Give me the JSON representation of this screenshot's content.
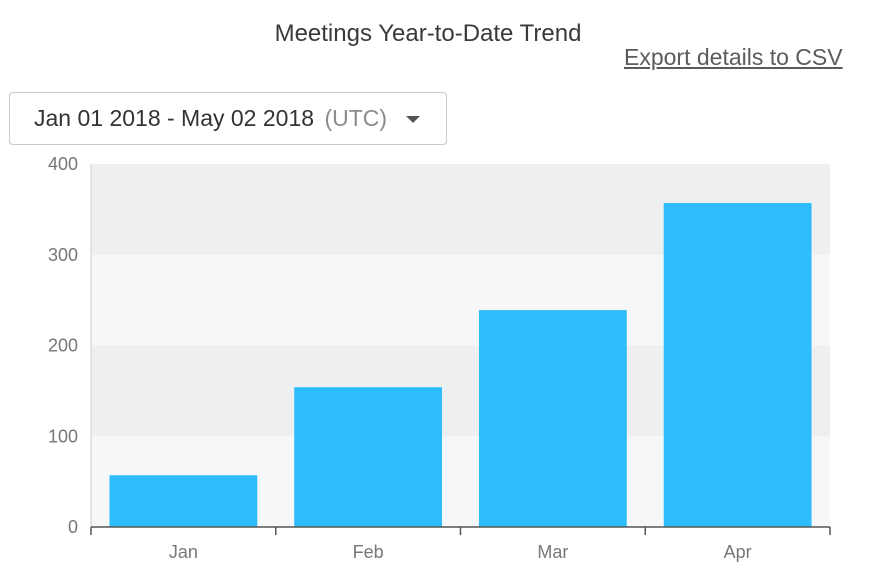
{
  "title": "Meetings Year-to-Date Trend",
  "export_link": "Export details to CSV",
  "date_filter": {
    "range": "Jan 01 2018 - May 02 2018",
    "timezone": "(UTC)"
  },
  "colors": {
    "bar": "#2EBDFC",
    "band_dark": "#EEEFF1",
    "band_light": "#F6F7F8"
  },
  "chart_data": {
    "type": "bar",
    "title": "",
    "xlabel": "",
    "ylabel": "",
    "categories": [
      "Jan",
      "Feb",
      "Mar",
      "Apr"
    ],
    "values": [
      57,
      154,
      239,
      357
    ],
    "ylim": [
      0,
      400
    ],
    "yticks": [
      0,
      100,
      200,
      300,
      400
    ],
    "grid": "alternating horizontal bands",
    "legend": "none"
  }
}
